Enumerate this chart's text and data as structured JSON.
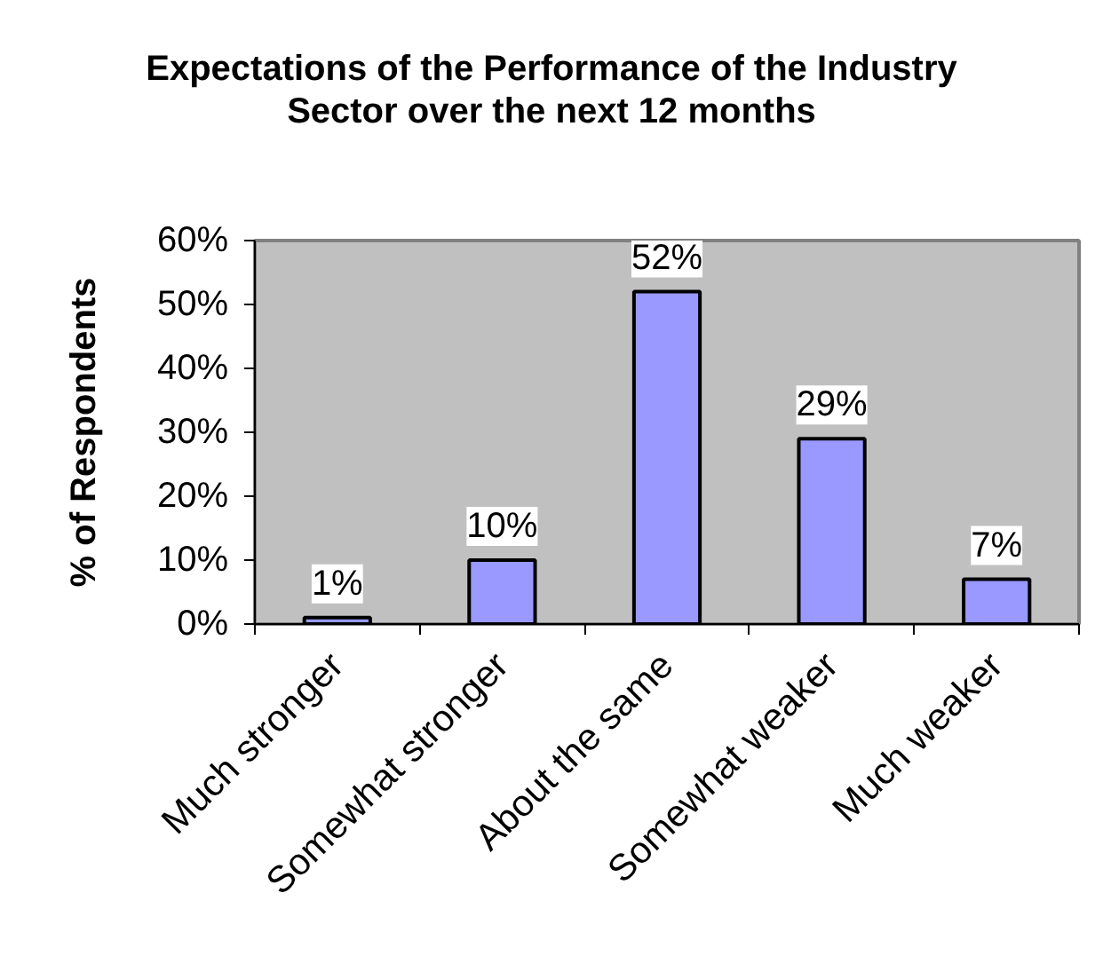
{
  "chart_data": {
    "type": "bar",
    "title": "Expectations of the Performance of the Industry Sector over the next 12 months",
    "ylabel": "% of Respondents",
    "categories": [
      "Much stronger",
      "Somewhat stronger",
      "About the same",
      "Somewhat weaker",
      "Much weaker"
    ],
    "values": [
      1,
      10,
      52,
      29,
      7
    ],
    "color": "#9999ff",
    "value_labels": [
      "1%",
      "10%",
      "52%",
      "29%",
      "7%"
    ],
    "ylim": [
      0,
      60
    ],
    "yticks": [
      {
        "value": 0,
        "label": "0%"
      },
      {
        "value": 10,
        "label": "10%"
      },
      {
        "value": 20,
        "label": "20%"
      },
      {
        "value": 30,
        "label": "30%"
      },
      {
        "value": 40,
        "label": "40%"
      },
      {
        "value": 50,
        "label": "50%"
      },
      {
        "value": 60,
        "label": "60%"
      }
    ]
  }
}
